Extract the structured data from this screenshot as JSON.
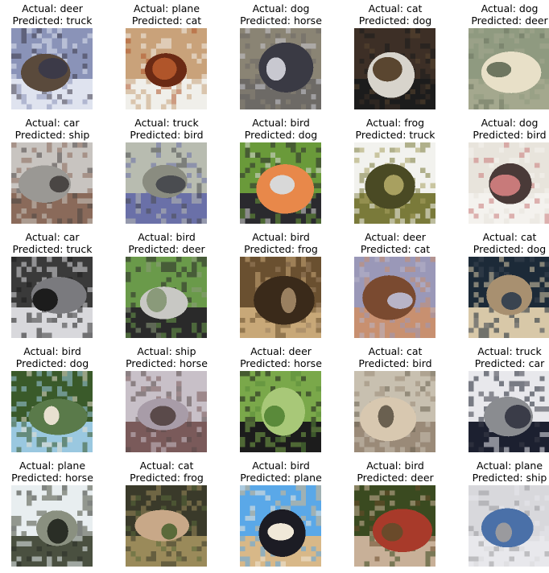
{
  "panels": [
    {
      "actual": "Actual: deer",
      "predicted": "Predicted: truck",
      "icon": "deer-photo",
      "palette": [
        "#8a93b8",
        "#dfe3ef",
        "#5a4a3c",
        "#3c3a48"
      ]
    },
    {
      "actual": "Actual: plane",
      "predicted": "Predicted: cat",
      "icon": "plane-photo",
      "palette": [
        "#c9a27a",
        "#f0efea",
        "#6b2a14",
        "#b0552a"
      ]
    },
    {
      "actual": "Actual: dog",
      "predicted": "Predicted: horse",
      "icon": "dog-photo",
      "palette": [
        "#8a8474",
        "#6d6a66",
        "#3a3a44",
        "#c8c8d0"
      ]
    },
    {
      "actual": "Actual: cat",
      "predicted": "Predicted: dog",
      "icon": "cat-photo",
      "palette": [
        "#3d2f26",
        "#1c1c1c",
        "#d8d4cc",
        "#5a4630"
      ]
    },
    {
      "actual": "Actual: dog",
      "predicted": "Predicted: deer",
      "icon": "dog-photo",
      "palette": [
        "#8f9a80",
        "#a4a88e",
        "#e8e0c8",
        "#6e7660"
      ]
    },
    {
      "actual": "Actual: car",
      "predicted": "Predicted: ship",
      "icon": "car-photo",
      "palette": [
        "#c8c4c0",
        "#8a6a5a",
        "#9a9894",
        "#4a4644"
      ]
    },
    {
      "actual": "Actual: truck",
      "predicted": "Predicted: bird",
      "icon": "truck-photo",
      "palette": [
        "#b8bcb0",
        "#6a70a8",
        "#8a8c80",
        "#4a4c50"
      ]
    },
    {
      "actual": "Actual: bird",
      "predicted": "Predicted: dog",
      "icon": "bird-photo",
      "palette": [
        "#6a9a3a",
        "#2a2a2e",
        "#e8884a",
        "#d8d8d8"
      ]
    },
    {
      "actual": "Actual: frog",
      "predicted": "Predicted: truck",
      "icon": "frog-photo",
      "palette": [
        "#f2f2ee",
        "#7a7a3a",
        "#4a4a24",
        "#a8a060"
      ]
    },
    {
      "actual": "Actual: dog",
      "predicted": "Predicted: bird",
      "icon": "dog-photo",
      "palette": [
        "#e8e4dc",
        "#f4f2ee",
        "#4a3a38",
        "#c87a7a"
      ]
    },
    {
      "actual": "Actual: car",
      "predicted": "Predicted: truck",
      "icon": "car-photo",
      "palette": [
        "#3a3a3a",
        "#d8d8dc",
        "#7a7a7e",
        "#1c1c1c"
      ]
    },
    {
      "actual": "Actual: bird",
      "predicted": "Predicted: deer",
      "icon": "bird-photo",
      "palette": [
        "#6a9a4a",
        "#2a2a2a",
        "#c8c8c4",
        "#8a9a7a"
      ]
    },
    {
      "actual": "Actual: bird",
      "predicted": "Predicted: frog",
      "icon": "bird-photo",
      "palette": [
        "#6a5030",
        "#c8a878",
        "#3a2a1a",
        "#9a8060"
      ]
    },
    {
      "actual": "Actual: deer",
      "predicted": "Predicted: cat",
      "icon": "deer-photo",
      "palette": [
        "#9a98b8",
        "#c89070",
        "#7a4a30",
        "#b8b4c8"
      ]
    },
    {
      "actual": "Actual: cat",
      "predicted": "Predicted: dog",
      "icon": "cat-photo",
      "palette": [
        "#1c2a38",
        "#d8c8a8",
        "#a89070",
        "#3a4450"
      ]
    },
    {
      "actual": "Actual: bird",
      "predicted": "Predicted: dog",
      "icon": "bird-photo",
      "palette": [
        "#3a5a2a",
        "#9ac8e0",
        "#5a7a4a",
        "#e8e0d0"
      ]
    },
    {
      "actual": "Actual: ship",
      "predicted": "Predicted: horse",
      "icon": "ship-photo",
      "palette": [
        "#c8c0c8",
        "#7a5a5a",
        "#a89ca8",
        "#5a4a4a"
      ]
    },
    {
      "actual": "Actual: deer",
      "predicted": "Predicted: horse",
      "icon": "deer-photo",
      "palette": [
        "#7aa84a",
        "#1c1c1c",
        "#a8c878",
        "#5a8a3a"
      ]
    },
    {
      "actual": "Actual: cat",
      "predicted": "Predicted: bird",
      "icon": "cat-photo",
      "palette": [
        "#c8c0b0",
        "#9a8a78",
        "#d8c8b0",
        "#6a6050"
      ]
    },
    {
      "actual": "Actual: truck",
      "predicted": "Predicted: car",
      "icon": "truck-photo",
      "palette": [
        "#e8e8ec",
        "#1c2030",
        "#8a8c90",
        "#3a3c48"
      ]
    },
    {
      "actual": "Actual: plane",
      "predicted": "Predicted: horse",
      "icon": "plane-photo",
      "palette": [
        "#e8eef0",
        "#4a5040",
        "#8a9080",
        "#2a2e26"
      ]
    },
    {
      "actual": "Actual: cat",
      "predicted": "Predicted: frog",
      "icon": "cat-photo",
      "palette": [
        "#3a3a2a",
        "#9a8a5a",
        "#c8a888",
        "#5a6a3a"
      ]
    },
    {
      "actual": "Actual: bird",
      "predicted": "Predicted: plane",
      "icon": "bird-photo",
      "palette": [
        "#5aa8e8",
        "#d8b888",
        "#1c1c24",
        "#f0e8d8"
      ]
    },
    {
      "actual": "Actual: bird",
      "predicted": "Predicted: deer",
      "icon": "bird-photo",
      "palette": [
        "#3a4a20",
        "#c8b098",
        "#a83a2a",
        "#6a4a2a"
      ]
    },
    {
      "actual": "Actual: plane",
      "predicted": "Predicted: ship",
      "icon": "plane-photo",
      "palette": [
        "#d8d8dc",
        "#e8e8ec",
        "#4a70a8",
        "#9a9a9e"
      ]
    }
  ]
}
